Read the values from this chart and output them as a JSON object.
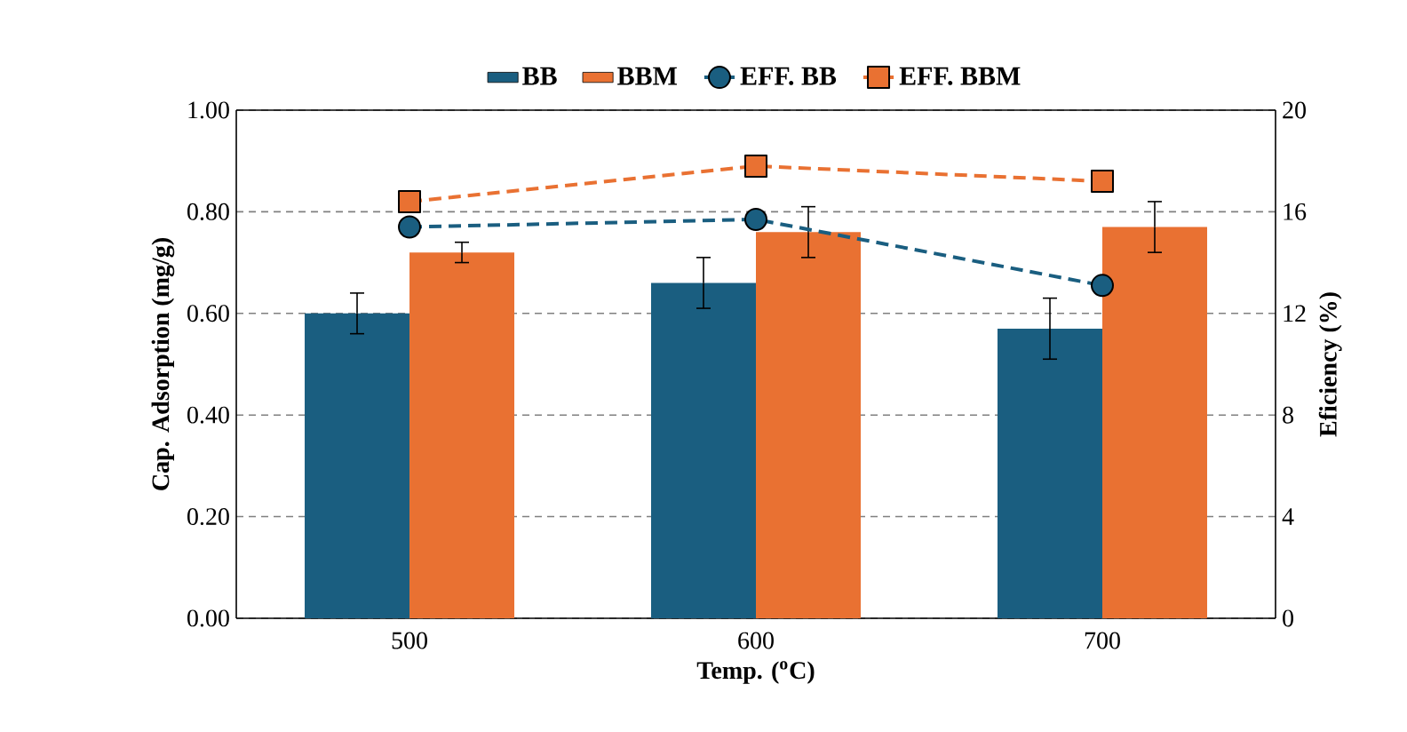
{
  "chart_data": {
    "type": "bar",
    "categories": [
      "500",
      "600",
      "700"
    ],
    "xlabel": "Temp. ($^{o}$C)",
    "ylabel": "Cap. Adsorption (mg/g)",
    "y2label": "Eficiency (%)",
    "ylim": [
      0,
      1
    ],
    "yticks": [
      {
        "value": 0,
        "label": "0.00"
      },
      {
        "value": 0.2,
        "label": "0.20"
      },
      {
        "value": 0.4,
        "label": "0.40"
      },
      {
        "value": 0.6,
        "label": "0.60"
      },
      {
        "value": 0.8,
        "label": "0.80"
      },
      {
        "value": 1,
        "label": "1.00"
      }
    ],
    "y2lim": [
      0,
      20
    ],
    "y2ticks": [
      0,
      4,
      8,
      12,
      16,
      20
    ],
    "grid": "y",
    "legend": "top",
    "series": [
      {
        "name": "BB",
        "color": "#1a5e80",
        "values": [
          0.6,
          0.66,
          0.57
        ],
        "errors": [
          0.04,
          0.05,
          0.06
        ]
      },
      {
        "name": "BBM",
        "color": "#e97132",
        "values": [
          0.72,
          0.76,
          0.77
        ],
        "errors": [
          0.02,
          0.05,
          0.05
        ]
      },
      {
        "name": "EFF. BB",
        "type": "line",
        "axis": "y2",
        "color": "#1a5e80",
        "marker": "circle",
        "line_style": "dashed",
        "values": [
          15.4,
          15.7,
          13.1
        ]
      },
      {
        "name": "EFF. BBM",
        "type": "line",
        "axis": "y2",
        "color": "#e97132",
        "marker": "square",
        "line_style": "dashed",
        "values": [
          16.4,
          17.8,
          17.2
        ]
      }
    ]
  }
}
